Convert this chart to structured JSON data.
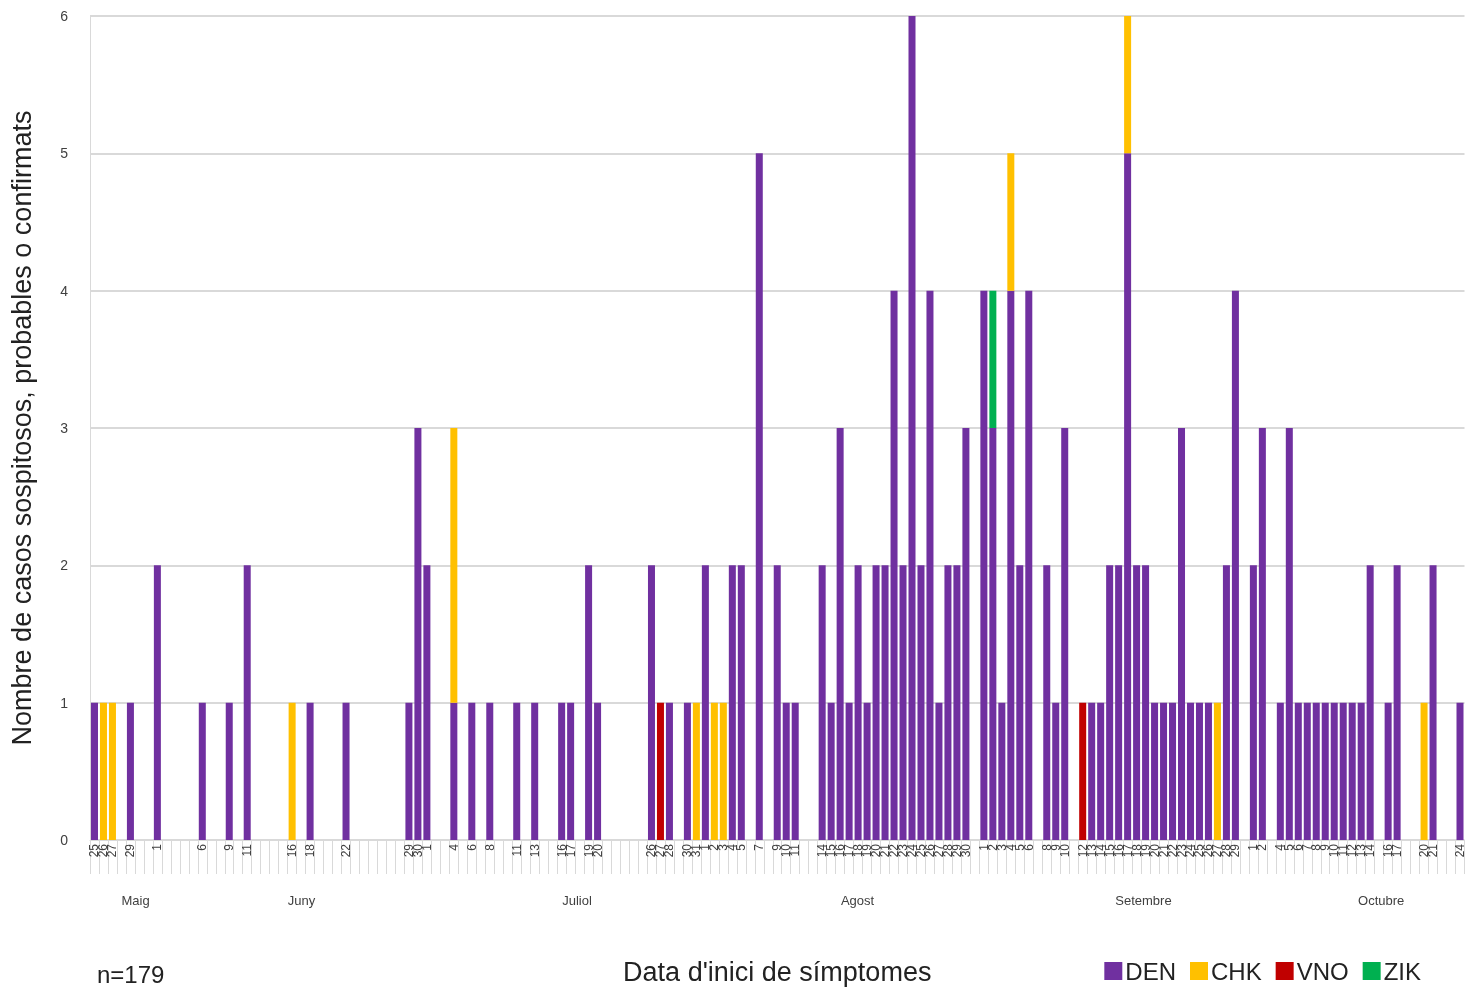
{
  "chart_data": {
    "type": "bar",
    "stacked": true,
    "xlabel": "Data d'inici de símptomes",
    "ylabel": "Nombre de casos sospitosos, probables o confirmats",
    "categories": [
      "25",
      "26",
      "27",
      null,
      "29",
      null,
      null,
      "1",
      null,
      null,
      null,
      null,
      "6",
      null,
      null,
      "9",
      null,
      "11",
      null,
      null,
      null,
      null,
      "16",
      null,
      "18",
      null,
      null,
      null,
      "22",
      null,
      null,
      null,
      null,
      null,
      null,
      "29",
      "30",
      "1",
      null,
      null,
      "4",
      null,
      "6",
      null,
      "8",
      null,
      null,
      "11",
      null,
      "13",
      null,
      null,
      "16",
      "17",
      null,
      "19",
      "20",
      null,
      null,
      null,
      null,
      null,
      "26",
      "27",
      "28",
      null,
      "30",
      "31",
      "1",
      "2",
      "3",
      "4",
      "5",
      null,
      "7",
      null,
      "9",
      "10",
      "11",
      null,
      null,
      "14",
      "15",
      "16",
      "17",
      "18",
      "19",
      "20",
      "21",
      "22",
      "23",
      "24",
      "25",
      "26",
      "27",
      "28",
      "29",
      "30",
      null,
      "1",
      "2",
      "3",
      "4",
      "5",
      "6",
      null,
      "8",
      "9",
      "10",
      null,
      "12",
      "13",
      "14",
      "15",
      "16",
      "17",
      "18",
      "19",
      "20",
      "21",
      "22",
      "23",
      "24",
      "25",
      "26",
      "27",
      "28",
      "29",
      null,
      "1",
      "2",
      null,
      "4",
      "5",
      "6",
      "7",
      "8",
      "9",
      "10",
      "11",
      "12",
      "13",
      "14",
      null,
      "16",
      "17",
      null,
      null,
      "20",
      "21",
      null,
      null,
      "24"
    ],
    "series": [
      {
        "name": "DEN",
        "color": "#7030a0",
        "values": [
          1,
          null,
          null,
          null,
          1,
          null,
          null,
          2,
          null,
          null,
          null,
          null,
          1,
          null,
          null,
          1,
          null,
          2,
          null,
          null,
          null,
          null,
          null,
          null,
          1,
          null,
          null,
          null,
          1,
          null,
          null,
          null,
          null,
          null,
          null,
          1,
          3,
          2,
          null,
          null,
          1,
          null,
          1,
          null,
          1,
          null,
          null,
          1,
          null,
          1,
          null,
          null,
          1,
          1,
          null,
          2,
          1,
          null,
          null,
          null,
          null,
          null,
          2,
          null,
          1,
          null,
          1,
          null,
          2,
          null,
          null,
          2,
          2,
          null,
          5,
          null,
          2,
          1,
          1,
          null,
          null,
          2,
          1,
          3,
          1,
          2,
          1,
          2,
          2,
          4,
          2,
          6,
          2,
          4,
          1,
          2,
          2,
          3,
          null,
          4,
          3,
          1,
          4,
          2,
          4,
          null,
          2,
          1,
          3,
          null,
          null,
          1,
          1,
          2,
          2,
          5,
          2,
          2,
          1,
          1,
          1,
          3,
          1,
          1,
          1,
          null,
          2,
          4,
          null,
          2,
          3,
          null,
          1,
          3,
          1,
          1,
          1,
          1,
          1,
          1,
          1,
          1,
          2,
          null,
          1,
          2,
          null,
          null,
          null,
          2,
          null,
          null,
          1
        ]
      },
      {
        "name": "CHK",
        "color": "#ffc000",
        "values": [
          null,
          1,
          1,
          null,
          null,
          null,
          null,
          null,
          null,
          null,
          null,
          null,
          null,
          null,
          null,
          null,
          null,
          null,
          null,
          null,
          null,
          null,
          1,
          null,
          null,
          null,
          null,
          null,
          null,
          null,
          null,
          null,
          null,
          null,
          null,
          null,
          null,
          null,
          null,
          null,
          2,
          null,
          null,
          null,
          null,
          null,
          null,
          null,
          null,
          null,
          null,
          null,
          null,
          null,
          null,
          null,
          null,
          null,
          null,
          null,
          null,
          null,
          null,
          null,
          null,
          null,
          null,
          1,
          null,
          1,
          1,
          null,
          null,
          null,
          null,
          null,
          null,
          null,
          null,
          null,
          null,
          null,
          null,
          null,
          null,
          null,
          null,
          null,
          null,
          null,
          null,
          null,
          null,
          null,
          null,
          null,
          null,
          null,
          null,
          null,
          null,
          null,
          1,
          null,
          null,
          null,
          null,
          null,
          null,
          null,
          null,
          null,
          null,
          null,
          null,
          1,
          null,
          null,
          null,
          null,
          null,
          null,
          null,
          null,
          null,
          1,
          null,
          null,
          null,
          null,
          null,
          null,
          null,
          null,
          null,
          null,
          null,
          null,
          null,
          null,
          null,
          null,
          null,
          null,
          null,
          null,
          null,
          null,
          1,
          null,
          null,
          null,
          null
        ]
      },
      {
        "name": "VNO",
        "color": "#c00000",
        "values": [
          null,
          null,
          null,
          null,
          null,
          null,
          null,
          null,
          null,
          null,
          null,
          null,
          null,
          null,
          null,
          null,
          null,
          null,
          null,
          null,
          null,
          null,
          null,
          null,
          null,
          null,
          null,
          null,
          null,
          null,
          null,
          null,
          null,
          null,
          null,
          null,
          null,
          null,
          null,
          null,
          null,
          null,
          null,
          null,
          null,
          null,
          null,
          null,
          null,
          null,
          null,
          null,
          null,
          null,
          null,
          null,
          null,
          null,
          null,
          null,
          null,
          null,
          null,
          1,
          null,
          null,
          null,
          null,
          null,
          null,
          null,
          null,
          null,
          null,
          null,
          null,
          null,
          null,
          null,
          null,
          null,
          null,
          null,
          null,
          null,
          null,
          null,
          null,
          null,
          null,
          null,
          null,
          null,
          null,
          null,
          null,
          null,
          null,
          null,
          null,
          null,
          null,
          null,
          null,
          null,
          null,
          null,
          null,
          null,
          null,
          1,
          null,
          null,
          null,
          null,
          null,
          null,
          null,
          null,
          null,
          null,
          null,
          null,
          null,
          null,
          null,
          null,
          null,
          null,
          null,
          null,
          null,
          null,
          null,
          null,
          null,
          null,
          null,
          null,
          null,
          null,
          null,
          null,
          null,
          null,
          null,
          null,
          null,
          null,
          null,
          null,
          null,
          null
        ]
      },
      {
        "name": "ZIK",
        "color": "#00b050",
        "values": [
          null,
          null,
          null,
          null,
          null,
          null,
          null,
          null,
          null,
          null,
          null,
          null,
          null,
          null,
          null,
          null,
          null,
          null,
          null,
          null,
          null,
          null,
          null,
          null,
          null,
          null,
          null,
          null,
          null,
          null,
          null,
          null,
          null,
          null,
          null,
          null,
          null,
          null,
          null,
          null,
          null,
          null,
          null,
          null,
          null,
          null,
          null,
          null,
          null,
          null,
          null,
          null,
          null,
          null,
          null,
          null,
          null,
          null,
          null,
          null,
          null,
          null,
          null,
          null,
          null,
          null,
          null,
          null,
          null,
          null,
          null,
          null,
          null,
          null,
          null,
          null,
          null,
          null,
          null,
          null,
          null,
          null,
          null,
          null,
          null,
          null,
          null,
          null,
          null,
          null,
          null,
          null,
          null,
          null,
          null,
          null,
          null,
          null,
          null,
          null,
          1,
          null,
          null,
          null,
          null,
          null,
          null,
          null,
          null,
          null,
          null,
          null,
          null,
          null,
          null,
          null,
          null,
          null,
          null,
          null,
          null,
          null,
          null,
          null,
          null,
          null,
          null,
          null,
          null,
          null,
          null,
          null,
          null,
          null,
          null,
          null,
          null,
          null,
          null,
          null,
          null,
          null,
          null,
          null,
          null,
          null,
          null,
          null,
          null,
          null,
          null,
          null,
          null
        ]
      }
    ],
    "ylim": [
      0,
      6
    ],
    "yticks": [
      0,
      1,
      2,
      3,
      4,
      5,
      6
    ],
    "grid": "y",
    "legend": "bottom right",
    "annotations": [
      "Maig",
      "Juny",
      "Juliol",
      "Agost",
      "Setembre",
      "Octubre",
      "n=179"
    ]
  }
}
